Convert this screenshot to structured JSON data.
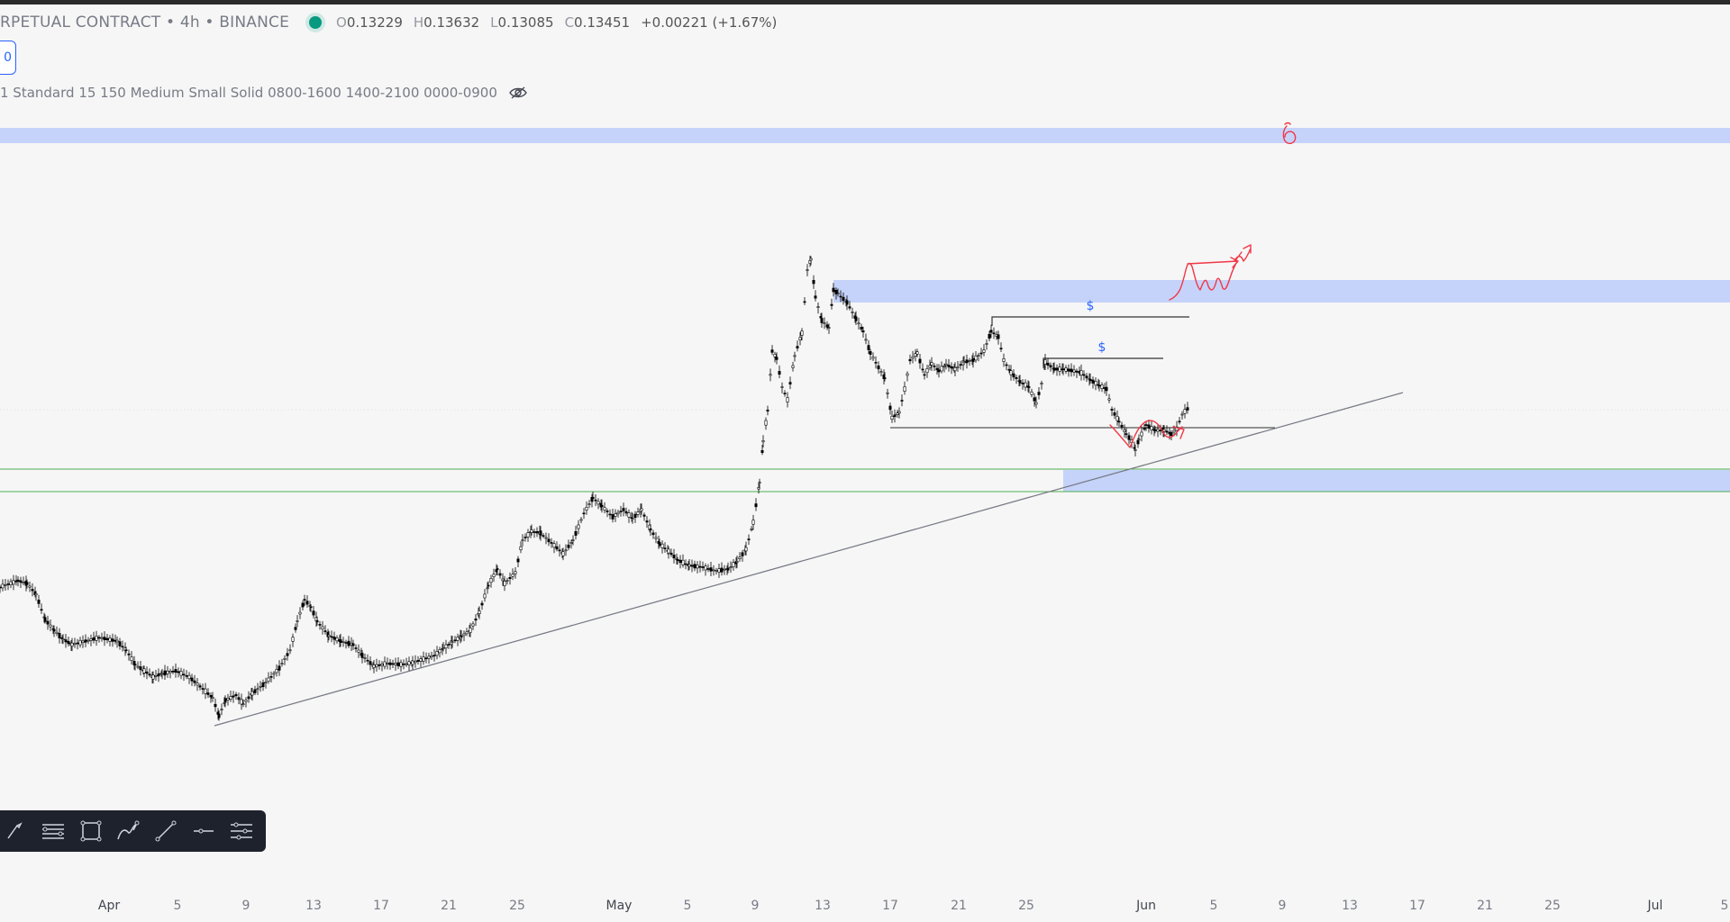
{
  "header": {
    "symbol": "RPETUAL CONTRACT • 4h • BINANCE",
    "ohlc": {
      "o_label": "O",
      "o": "0.13229",
      "h_label": "H",
      "h": "0.13632",
      "l_label": "L",
      "l": "0.13085",
      "c_label": "C",
      "c": "0.13451",
      "change": "+0.00221 (+1.67%)"
    },
    "status_color": "#089981"
  },
  "badge": {
    "text": "0"
  },
  "indicator": {
    "text": "1 Standard 15 150 Medium Small Solid 0800-1600 1400-2100 0000-0900",
    "visibility_icon": "eye-off-icon"
  },
  "annotations": {
    "dollar_1": "$",
    "dollar_2": "$"
  },
  "colors": {
    "zone": "#c5d3fa",
    "trendline": "#787b86",
    "support_line": "#4caf50",
    "drawing": "#f23645",
    "candle": "#000000"
  },
  "toolbar": {
    "tools": [
      "brush-icon",
      "fib-retracement-icon",
      "rectangle-icon",
      "path-icon",
      "trend-line-icon",
      "horizontal-line-icon",
      "settings-sliders-icon"
    ]
  },
  "x_axis": {
    "labels": [
      "Apr",
      "5",
      "9",
      "13",
      "17",
      "21",
      "25",
      "May",
      "5",
      "9",
      "13",
      "17",
      "21",
      "25",
      "Jun",
      "5",
      "9",
      "13",
      "17",
      "21",
      "25",
      "Jul",
      "5"
    ]
  }
}
